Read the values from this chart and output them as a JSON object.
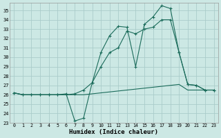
{
  "xlabel": "Humidex (Indice chaleur)",
  "bg_color": "#cce8e4",
  "grid_color": "#aaccca",
  "line_color": "#1a6b5a",
  "xlim_min": -0.5,
  "xlim_max": 23.5,
  "ylim_min": 23,
  "ylim_max": 35.8,
  "yticks": [
    23,
    24,
    25,
    26,
    27,
    28,
    29,
    30,
    31,
    32,
    33,
    34,
    35
  ],
  "xticks": [
    0,
    1,
    2,
    3,
    4,
    5,
    6,
    7,
    8,
    9,
    10,
    11,
    12,
    13,
    14,
    15,
    16,
    17,
    18,
    19,
    20,
    21,
    22,
    23
  ],
  "line1_x": [
    0,
    1,
    2,
    3,
    4,
    5,
    6,
    7,
    8,
    9,
    10,
    11,
    12,
    13,
    14,
    15,
    16,
    17,
    18,
    19,
    20,
    21,
    22,
    23
  ],
  "line1_y": [
    26.2,
    26.0,
    26.0,
    26.0,
    26.0,
    26.0,
    26.0,
    26.0,
    26.0,
    26.1,
    26.2,
    26.3,
    26.4,
    26.5,
    26.6,
    26.7,
    26.8,
    26.9,
    27.0,
    27.1,
    26.5,
    26.5,
    26.5,
    26.5
  ],
  "line2_x": [
    0,
    1,
    2,
    3,
    4,
    5,
    6,
    7,
    8,
    9,
    10,
    11,
    12,
    13,
    14,
    15,
    16,
    17,
    18,
    19,
    20,
    21,
    22,
    23
  ],
  "line2_y": [
    26.2,
    26.0,
    26.0,
    26.0,
    26.0,
    26.0,
    26.0,
    26.1,
    26.5,
    27.3,
    29.0,
    30.5,
    31.0,
    32.8,
    32.5,
    33.0,
    33.2,
    34.0,
    34.0,
    30.5,
    27.1,
    27.0,
    26.5,
    26.5
  ],
  "line3_x": [
    0,
    1,
    2,
    3,
    4,
    5,
    6,
    7,
    8,
    9,
    10,
    11,
    12,
    13,
    14,
    15,
    16,
    17,
    18,
    19,
    20,
    21,
    22,
    23
  ],
  "line3_y": [
    26.2,
    26.0,
    26.0,
    26.0,
    26.0,
    26.0,
    26.1,
    23.2,
    23.5,
    27.3,
    30.5,
    32.3,
    33.3,
    33.2,
    29.0,
    33.5,
    34.3,
    35.5,
    35.2,
    30.5,
    27.1,
    27.0,
    26.5,
    26.5
  ]
}
